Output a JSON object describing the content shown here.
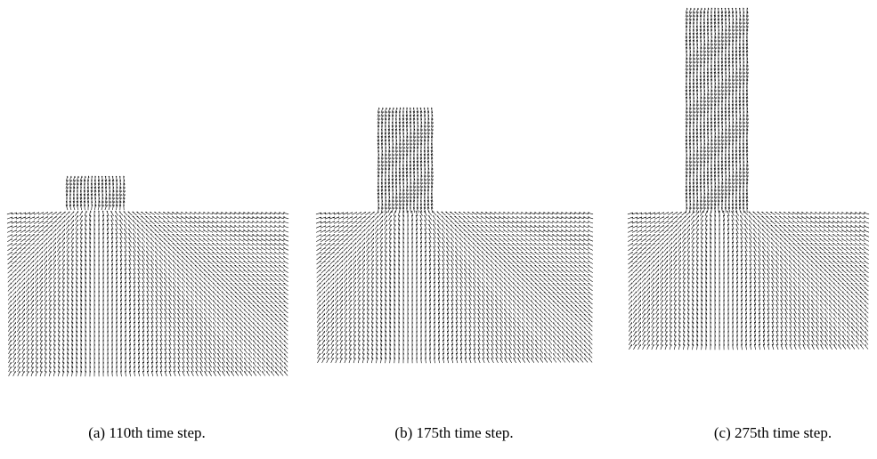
{
  "figure": {
    "captions": [
      "(a) 110th time step.",
      "(b) 175th time step.",
      "(c) 275th time step."
    ]
  }
}
